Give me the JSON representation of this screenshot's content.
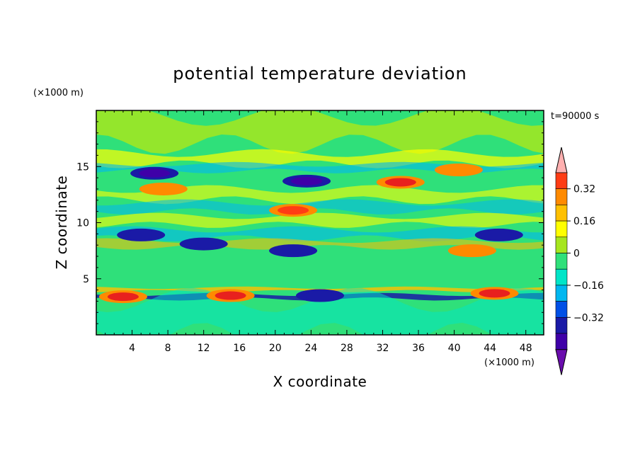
{
  "chart_data": {
    "type": "heatmap",
    "title": "potential temperature deviation",
    "xlabel": "X coordinate",
    "ylabel": "Z coordinate",
    "x_unit": "(×1000 m)",
    "y_unit": "(×1000 m)",
    "time_label": "t=90000 s",
    "xlim": [
      0,
      50
    ],
    "ylim": [
      0,
      20
    ],
    "x_ticks": [
      4,
      8,
      12,
      16,
      20,
      24,
      28,
      32,
      36,
      40,
      44,
      48
    ],
    "y_ticks": [
      5,
      10,
      15
    ],
    "colorbar": {
      "levels": [
        -0.48,
        -0.4,
        -0.32,
        -0.24,
        -0.16,
        -0.08,
        0,
        0.08,
        0.16,
        0.24,
        0.32,
        0.4
      ],
      "colors": [
        "#6a0dad",
        "#3f00a8",
        "#1a1aa6",
        "#0050e6",
        "#00b7f0",
        "#00e5c8",
        "#2fe07a",
        "#a6e61e",
        "#ffff00",
        "#ffc000",
        "#ff8a00",
        "#ff3c14",
        "#e8211e",
        "#ffb0b0"
      ],
      "labels": [
        {
          "value": -0.32,
          "text": "−0.32"
        },
        {
          "value": -0.16,
          "text": "−0.16"
        },
        {
          "value": 0,
          "text": "0"
        },
        {
          "value": 0.16,
          "text": "0.16"
        },
        {
          "value": 0.32,
          "text": "0.32"
        }
      ]
    },
    "features": [
      {
        "x": 6.5,
        "z": 14.4,
        "value": -0.44
      },
      {
        "x": 23.5,
        "z": 13.7,
        "value": -0.42
      },
      {
        "x": 34.0,
        "z": 13.6,
        "value": 0.44
      },
      {
        "x": 22.0,
        "z": 11.1,
        "value": 0.34
      },
      {
        "x": 40.5,
        "z": 14.7,
        "value": 0.3
      },
      {
        "x": 7.5,
        "z": 13.0,
        "value": 0.28
      },
      {
        "x": 12.0,
        "z": 8.1,
        "value": -0.4
      },
      {
        "x": 22.0,
        "z": 7.5,
        "value": -0.4
      },
      {
        "x": 5.0,
        "z": 8.9,
        "value": -0.34
      },
      {
        "x": 45.0,
        "z": 8.9,
        "value": -0.34
      },
      {
        "x": 25.0,
        "z": 3.5,
        "value": -0.4
      },
      {
        "x": 3.0,
        "z": 3.4,
        "value": 0.44
      },
      {
        "x": 15.0,
        "z": 3.5,
        "value": 0.4
      },
      {
        "x": 44.5,
        "z": 3.7,
        "value": 0.44
      },
      {
        "x": 42.0,
        "z": 7.5,
        "value": 0.3
      }
    ]
  }
}
